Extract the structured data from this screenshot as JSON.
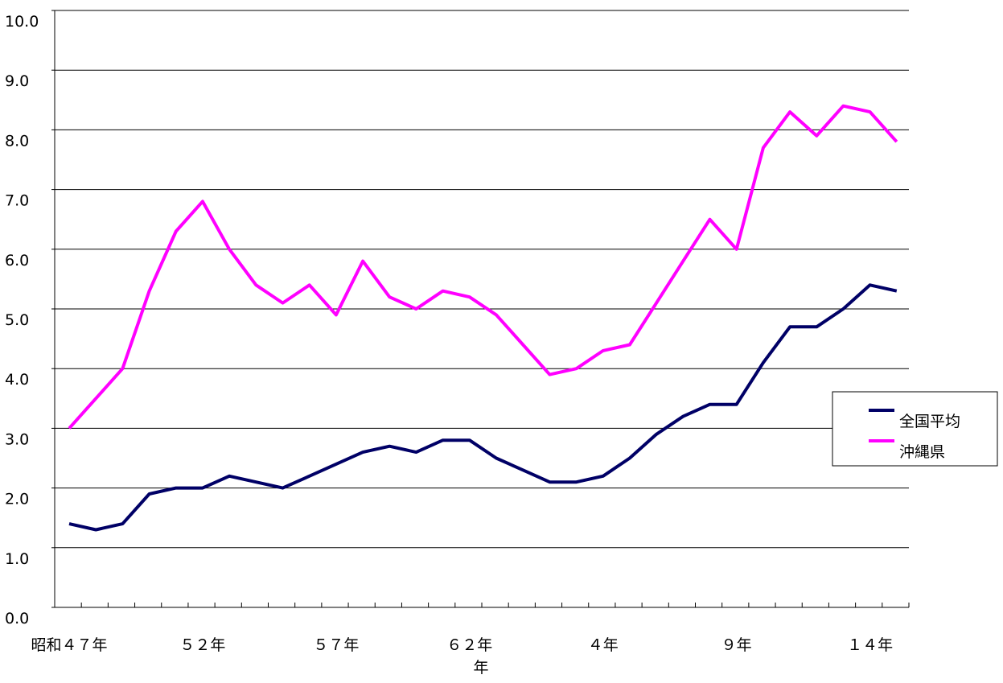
{
  "chart_data": {
    "type": "line",
    "title": "",
    "xlabel": "年",
    "ylabel": "",
    "ylim": [
      0,
      10
    ],
    "yticks": [
      "0.0",
      "1.0",
      "2.0",
      "3.0",
      "4.0",
      "5.0",
      "6.0",
      "7.0",
      "8.0",
      "9.0",
      "10.0"
    ],
    "grid": "horizontal",
    "legend_position": "right",
    "x_tick_labels": [
      {
        "index": 0,
        "label": "昭和４７年"
      },
      {
        "index": 5,
        "label": "５２年"
      },
      {
        "index": 10,
        "label": "５７年"
      },
      {
        "index": 15,
        "label": "６２年"
      },
      {
        "index": 20,
        "label": "４年"
      },
      {
        "index": 25,
        "label": "９年"
      },
      {
        "index": 30,
        "label": "１４年"
      }
    ],
    "point_count": 32,
    "series": [
      {
        "name": "全国平均",
        "color": "#000066",
        "values": [
          1.4,
          1.3,
          1.4,
          1.9,
          2.0,
          2.0,
          2.2,
          2.1,
          2.0,
          2.2,
          2.4,
          2.6,
          2.7,
          2.6,
          2.8,
          2.8,
          2.5,
          2.3,
          2.1,
          2.1,
          2.2,
          2.5,
          2.9,
          3.2,
          3.4,
          3.4,
          4.1,
          4.7,
          4.7,
          5.0,
          5.4,
          5.3
        ]
      },
      {
        "name": "沖縄県",
        "color": "#ff00ff",
        "values": [
          3.0,
          3.5,
          4.0,
          5.3,
          6.3,
          6.8,
          6.0,
          5.4,
          5.1,
          5.4,
          4.9,
          5.8,
          5.2,
          5.0,
          5.3,
          5.2,
          4.9,
          4.4,
          3.9,
          4.0,
          4.3,
          4.4,
          5.1,
          5.8,
          6.5,
          6.0,
          7.7,
          8.3,
          7.9,
          8.4,
          8.3,
          7.8
        ]
      }
    ]
  }
}
